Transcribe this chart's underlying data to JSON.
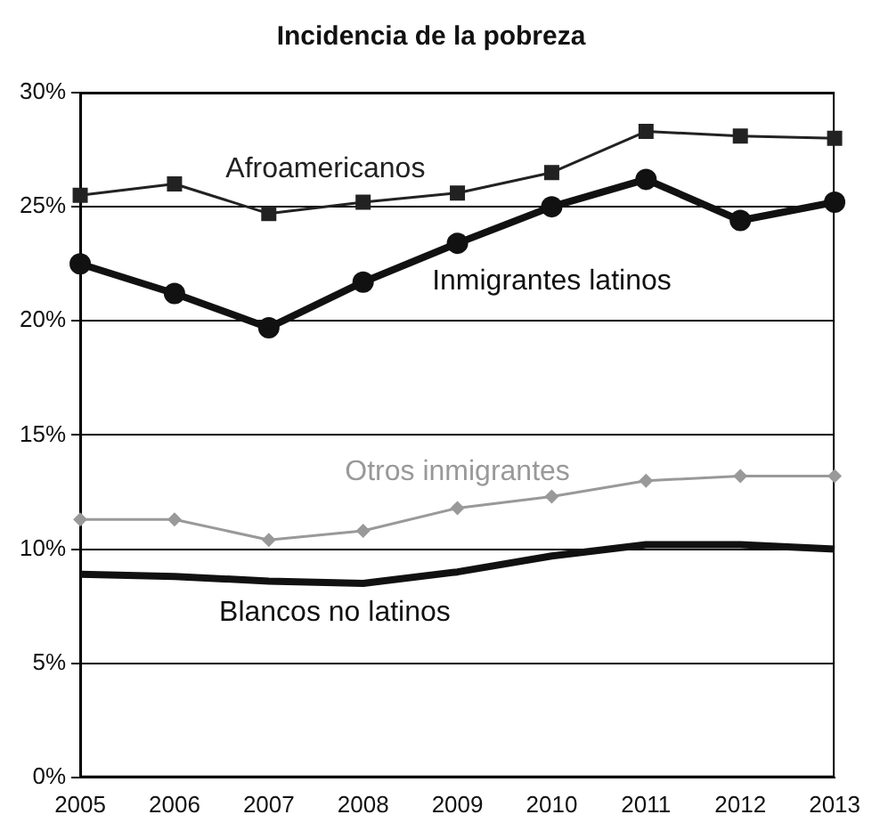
{
  "chart_data": {
    "type": "line",
    "title": "Incidencia de la pobreza",
    "categories": [
      "2005",
      "2006",
      "2007",
      "2008",
      "2009",
      "2010",
      "2011",
      "2012",
      "2013"
    ],
    "series": [
      {
        "name": "Afroamericanos",
        "color": "#222222",
        "marker": "square",
        "values": [
          25.5,
          26.0,
          24.7,
          25.2,
          25.6,
          26.5,
          28.3,
          28.1,
          28.0
        ]
      },
      {
        "name": "Inmigrantes latinos",
        "color": "#111111",
        "marker": "circle",
        "values": [
          22.5,
          21.2,
          19.7,
          21.7,
          23.4,
          25.0,
          26.2,
          24.4,
          25.2
        ]
      },
      {
        "name": "Otros inmigrantes",
        "color": "#999999",
        "marker": "diamond",
        "values": [
          11.3,
          11.3,
          10.4,
          10.8,
          11.8,
          12.3,
          13.0,
          13.2,
          13.2
        ]
      },
      {
        "name": "Blancos no latinos",
        "color": "#111111",
        "marker": "none",
        "values": [
          8.9,
          8.8,
          8.6,
          8.5,
          9.0,
          9.7,
          10.2,
          10.2,
          10.0
        ]
      }
    ],
    "ylim": [
      0,
      30
    ],
    "yticks": [
      {
        "value": 0,
        "label": "0%"
      },
      {
        "value": 5,
        "label": "5%"
      },
      {
        "value": 10,
        "label": "10%"
      },
      {
        "value": 15,
        "label": "15%"
      },
      {
        "value": 20,
        "label": "20%"
      },
      {
        "value": 25,
        "label": "25%"
      },
      {
        "value": 30,
        "label": "30%"
      }
    ],
    "grid": "y",
    "legend": false
  }
}
